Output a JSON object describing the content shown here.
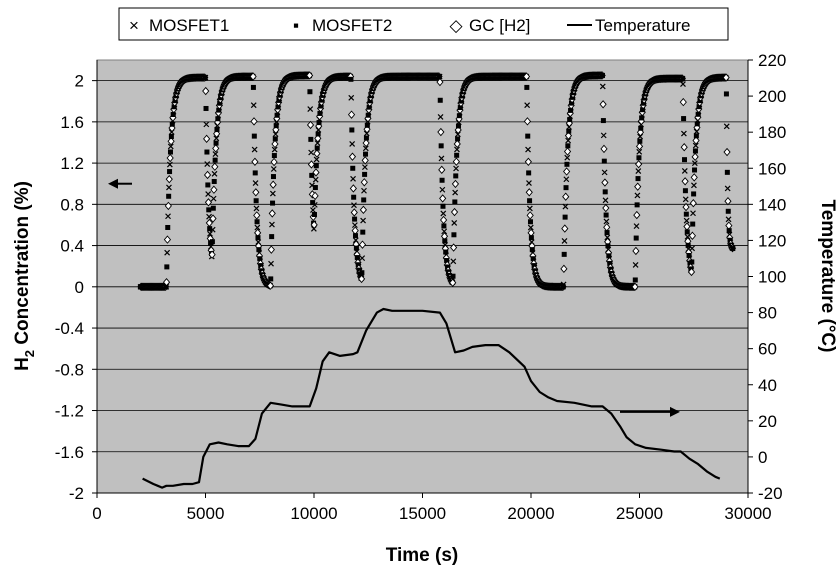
{
  "chart_data": {
    "type": "line",
    "xlabel": "Time (s)",
    "ylabel_left_main": "H",
    "ylabel_left_sub": "2",
    "ylabel_left_rest": " Concentration (%)",
    "ylabel_right": "Temperature (°C)",
    "xlim": [
      0,
      30000
    ],
    "ylim_left": [
      -2,
      2.2
    ],
    "ylim_right": [
      -20,
      220
    ],
    "grid": true,
    "legend_position": "top",
    "x_ticks": [
      "0",
      "5000",
      "10000",
      "15000",
      "20000",
      "25000",
      "30000"
    ],
    "y_ticks_left": [
      "-2",
      "-1.6",
      "-1.2",
      "-0.8",
      "-0.4",
      "0",
      "0.4",
      "0.8",
      "1.2",
      "1.6",
      "2"
    ],
    "y_ticks_right": [
      "-20",
      "0",
      "20",
      "40",
      "60",
      "80",
      "100",
      "120",
      "140",
      "160",
      "180",
      "200",
      "220"
    ],
    "annotations": [
      {
        "type": "arrow",
        "direction": "left",
        "points_to": "H2 Concentration axis",
        "at_y_left": 1.0
      },
      {
        "type": "arrow",
        "direction": "right",
        "points_to": "Temperature axis",
        "at_y_right": 25
      }
    ],
    "pulses": [
      {
        "start": 3200,
        "end": 5000,
        "plateau": 2.03
      },
      {
        "start": 5300,
        "end": 7200,
        "plateau": 2.04
      },
      {
        "start": 8000,
        "end": 9800,
        "plateau": 2.05
      },
      {
        "start": 10000,
        "end": 11700,
        "plateau": 2.04
      },
      {
        "start": 12200,
        "end": 15800,
        "plateau": 2.04
      },
      {
        "start": 16400,
        "end": 19800,
        "plateau": 2.04
      },
      {
        "start": 21500,
        "end": 23300,
        "plateau": 2.05
      },
      {
        "start": 24800,
        "end": 27000,
        "plateau": 2.02
      },
      {
        "start": 27400,
        "end": 29000,
        "plateau": 2.03
      }
    ],
    "concentration_start": 2000,
    "concentration_end": 29300,
    "concentration_final": 0.36,
    "series": [
      {
        "name": "MOSFET1",
        "marker": "x",
        "color": "#000000"
      },
      {
        "name": "MOSFET2",
        "marker": "square",
        "color": "#000000"
      },
      {
        "name": "GC [H2]",
        "marker": "diamond",
        "color": "#000000"
      },
      {
        "name": "Temperature",
        "axis": "right",
        "color": "#000000",
        "x": [
          2100,
          2600,
          2800,
          3000,
          3200,
          3500,
          4000,
          4400,
          4700,
          4900,
          5200,
          5600,
          6000,
          6500,
          7000,
          7300,
          7600,
          8000,
          8500,
          9000,
          9500,
          9800,
          10100,
          10400,
          10700,
          11200,
          11800,
          12000,
          12400,
          12900,
          13200,
          13600,
          14000,
          15000,
          15800,
          16100,
          16500,
          16900,
          17300,
          17900,
          18500,
          19000,
          19700,
          20000,
          20400,
          20800,
          21200,
          22000,
          22800,
          23300,
          23700,
          24100,
          24400,
          24800,
          25300,
          26000,
          26600,
          26900,
          27300,
          27700,
          28100,
          28500,
          28700
        ],
        "y": [
          -12,
          -15,
          -16,
          -17,
          -16,
          -16,
          -15,
          -15,
          -14,
          0,
          7,
          8,
          7,
          6,
          6,
          10,
          24,
          30,
          29,
          28,
          28,
          28,
          38,
          53,
          58,
          56,
          57,
          58,
          70,
          80,
          82,
          81,
          81,
          81,
          80,
          74,
          58,
          59,
          61,
          62,
          62,
          58,
          50,
          42,
          36,
          33,
          31,
          30,
          28,
          28,
          24,
          17,
          11,
          7,
          5,
          4,
          3,
          3,
          -1,
          -4,
          -8,
          -11,
          -12
        ]
      }
    ]
  },
  "legend": {
    "items": [
      {
        "symbol": "×",
        "label": "MOSFET1"
      },
      {
        "symbol": "▪",
        "label": "MOSFET2"
      },
      {
        "symbol": "◇",
        "label": "GC [H2]"
      },
      {
        "symbol": "line",
        "label": "Temperature"
      }
    ]
  },
  "colors": {
    "plot_background": "#c0c0c0",
    "grid": "#000000",
    "series": "#000000"
  }
}
